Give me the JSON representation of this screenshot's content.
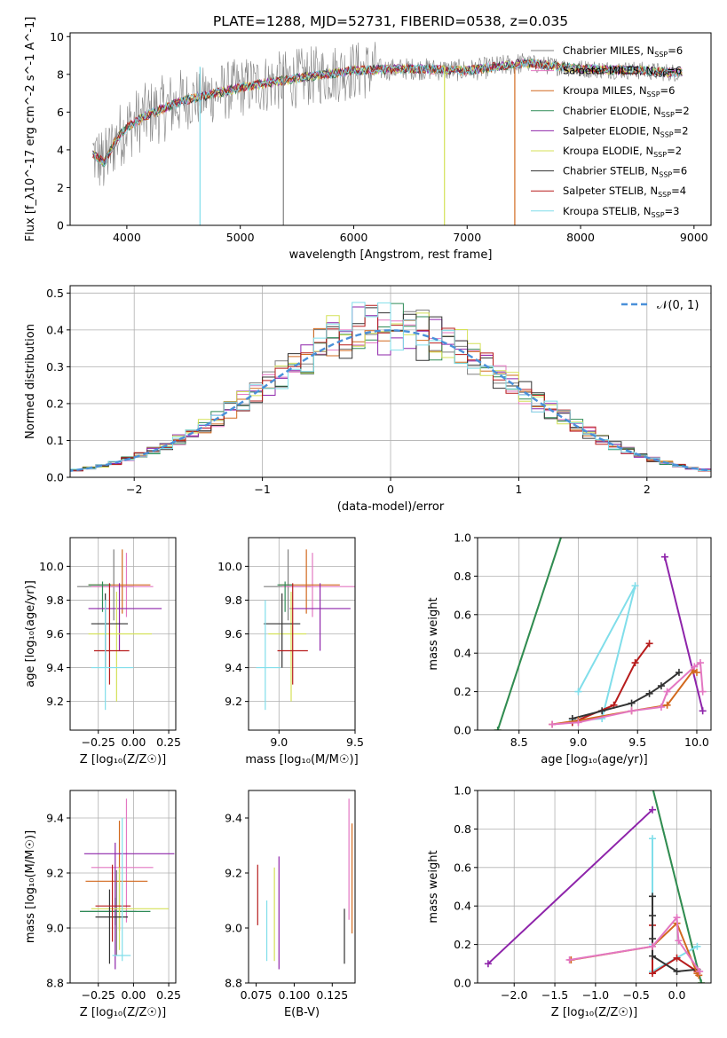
{
  "title": "PLATE=1288, MJD=52731, FIBERID=0538, z=0.035",
  "chart_data": [
    {
      "id": "spectrum",
      "type": "line",
      "xlabel": "wavelength [Angstrom, rest frame]",
      "ylabel": "Flux [f_λ10^-17 erg cm^-2 s^-1 A^-1]",
      "xlim": [
        3500,
        9150
      ],
      "ylim": [
        0,
        10.2
      ],
      "xticks": [
        4000,
        5000,
        6000,
        7000,
        8000,
        9000
      ],
      "yticks": [
        0,
        2,
        4,
        6,
        8,
        10
      ],
      "grid": false,
      "legend_loc": "right",
      "data_color": "#808080",
      "data_range": [
        3700,
        8900
      ],
      "continuum_x": [
        3700,
        3800,
        3900,
        4000,
        4200,
        4500,
        5000,
        5500,
        6000,
        6500,
        7000,
        7500,
        8000,
        8500,
        8800
      ],
      "continuum_y": [
        3.8,
        3.3,
        4.5,
        5.2,
        5.9,
        6.6,
        7.3,
        7.8,
        8.2,
        8.3,
        8.2,
        8.6,
        8.3,
        8.2,
        8.1
      ],
      "series": [
        {
          "name": "Chabrier MILES, N_SSP=6",
          "color": "#7f7f7f"
        },
        {
          "name": "Salpeter MILES, N_SSP=6",
          "color": "#e377c2"
        },
        {
          "name": "Kroupa MILES, N_SSP=6",
          "color": "#d2691e"
        },
        {
          "name": "Chabrier ELODIE, N_SSP=2",
          "color": "#2e8b57"
        },
        {
          "name": "Salpeter ELODIE, N_SSP=2",
          "color": "#8e24aa"
        },
        {
          "name": "Kroupa ELODIE, N_SSP=2",
          "color": "#d4e157"
        },
        {
          "name": "Chabrier STELIB, N_SSP=6",
          "color": "#333333"
        },
        {
          "name": "Salpeter STELIB, N_SSP=4",
          "color": "#b71c1c"
        },
        {
          "name": "Kroupa STELIB, N_SSP=3",
          "color": "#80deea"
        }
      ]
    },
    {
      "id": "residuals",
      "type": "line",
      "xlabel": "(data-model)/error",
      "ylabel": "Normed distribution",
      "xlim": [
        -2.5,
        2.5
      ],
      "ylim": [
        0,
        0.52
      ],
      "xticks": [
        -2,
        -1,
        0,
        1,
        2
      ],
      "yticks": [
        0.0,
        0.1,
        0.2,
        0.3,
        0.4,
        0.5
      ],
      "grid": true,
      "legend": "𝒩(0, 1)",
      "legend_loc": "top-right",
      "gauss_color": "#4a90d9",
      "bin_width": 0.1,
      "hist_colors": [
        "#7f7f7f",
        "#e377c2",
        "#d2691e",
        "#2e8b57",
        "#8e24aa",
        "#d4e157",
        "#333333",
        "#b71c1c",
        "#80deea"
      ]
    },
    {
      "id": "age-vs-Z",
      "type": "scatter",
      "xlabel": "Z [log₁₀(Z/Z☉)]",
      "ylabel": "age  [log₁₀(age/yr)]",
      "xlim": [
        -0.45,
        0.3
      ],
      "ylim": [
        9.03,
        10.17
      ],
      "xticks": [
        -0.25,
        0.0,
        0.25
      ],
      "yticks": [
        9.2,
        9.4,
        9.6,
        9.8,
        10.0
      ],
      "grid": true,
      "points": [
        {
          "x": -0.14,
          "y": 9.88,
          "xerr": [
            0.26,
            0.14
          ],
          "yerr": [
            0.2,
            0.22
          ],
          "color": "#7f7f7f"
        },
        {
          "x": -0.05,
          "y": 9.88,
          "xerr": [
            0.25,
            0.19
          ],
          "yerr": [
            0.18,
            0.2
          ],
          "color": "#e377c2"
        },
        {
          "x": -0.08,
          "y": 9.89,
          "xerr": [
            0.24,
            0.2
          ],
          "yerr": [
            0.17,
            0.21
          ],
          "color": "#d2691e"
        },
        {
          "x": -0.22,
          "y": 9.89,
          "xerr": [
            0.1,
            0.06
          ],
          "yerr": [
            0.16,
            0.02
          ],
          "color": "#2e8b57"
        },
        {
          "x": -0.1,
          "y": 9.75,
          "xerr": [
            0.22,
            0.3
          ],
          "yerr": [
            0.25,
            0.15
          ],
          "color": "#8e24aa"
        },
        {
          "x": -0.12,
          "y": 9.6,
          "xerr": [
            0.2,
            0.25
          ],
          "yerr": [
            0.4,
            0.25
          ],
          "color": "#d4e157"
        },
        {
          "x": -0.2,
          "y": 9.66,
          "xerr": [
            0.1,
            0.16
          ],
          "yerr": [
            0.26,
            0.18
          ],
          "color": "#333333"
        },
        {
          "x": -0.17,
          "y": 9.5,
          "xerr": [
            0.11,
            0.14
          ],
          "yerr": [
            0.2,
            0.4
          ],
          "color": "#b71c1c"
        },
        {
          "x": -0.2,
          "y": 9.4,
          "xerr": [
            0.1,
            0.2
          ],
          "yerr": [
            0.25,
            0.4
          ],
          "color": "#80deea"
        }
      ]
    },
    {
      "id": "age-vs-mass",
      "type": "scatter",
      "xlabel": "mass [log₁₀(M/M☉)]",
      "ylabel": "",
      "xlim": [
        8.8,
        9.5
      ],
      "ylim": [
        9.03,
        10.17
      ],
      "xticks": [
        9.0,
        9.5
      ],
      "yticks": [
        9.2,
        9.4,
        9.6,
        9.8,
        10.0
      ],
      "grid": true,
      "points": [
        {
          "x": 9.06,
          "y": 9.88,
          "xerr": [
            0.16,
            0.15
          ],
          "yerr": [
            0.2,
            0.22
          ],
          "color": "#7f7f7f"
        },
        {
          "x": 9.22,
          "y": 9.88,
          "xerr": [
            0.2,
            0.3
          ],
          "yerr": [
            0.18,
            0.2
          ],
          "color": "#e377c2"
        },
        {
          "x": 9.18,
          "y": 9.89,
          "xerr": [
            0.18,
            0.22
          ],
          "yerr": [
            0.17,
            0.21
          ],
          "color": "#d2691e"
        },
        {
          "x": 9.04,
          "y": 9.89,
          "xerr": [
            0.05,
            0.05
          ],
          "yerr": [
            0.16,
            0.02
          ],
          "color": "#2e8b57"
        },
        {
          "x": 9.27,
          "y": 9.75,
          "xerr": [
            0.2,
            0.2
          ],
          "yerr": [
            0.25,
            0.15
          ],
          "color": "#8e24aa"
        },
        {
          "x": 9.08,
          "y": 9.6,
          "xerr": [
            0.15,
            0.1
          ],
          "yerr": [
            0.4,
            0.25
          ],
          "color": "#d4e157"
        },
        {
          "x": 9.02,
          "y": 9.66,
          "xerr": [
            0.12,
            0.12
          ],
          "yerr": [
            0.26,
            0.18
          ],
          "color": "#333333"
        },
        {
          "x": 9.09,
          "y": 9.5,
          "xerr": [
            0.1,
            0.1
          ],
          "yerr": [
            0.2,
            0.4
          ],
          "color": "#b71c1c"
        },
        {
          "x": 8.91,
          "y": 9.4,
          "xerr": [
            0.06,
            0.1
          ],
          "yerr": [
            0.25,
            0.4
          ],
          "color": "#80deea"
        }
      ]
    },
    {
      "id": "massweight-vs-age",
      "type": "line",
      "xlabel": "age  [log₁₀(age/yr)]",
      "ylabel": "mass weight",
      "xlim": [
        8.15,
        10.12
      ],
      "ylim": [
        0,
        1.0
      ],
      "xticks": [
        8.5,
        9.0,
        9.5,
        10.0
      ],
      "yticks": [
        0.0,
        0.2,
        0.4,
        0.6,
        0.8,
        1.0
      ],
      "grid": true,
      "series": [
        {
          "color": "#d4e157",
          "x": [
            8.32,
            8.88
          ],
          "y": [
            0.0,
            1.05
          ]
        },
        {
          "color": "#2e8b57",
          "x": [
            8.32,
            8.88
          ],
          "y": [
            0.0,
            1.05
          ]
        },
        {
          "color": "#8e24aa",
          "x": [
            9.73,
            10.05
          ],
          "y": [
            0.9,
            0.1
          ]
        },
        {
          "color": "#80deea",
          "x": [
            8.95,
            9.2,
            9.48,
            9.0
          ],
          "y": [
            0.05,
            0.06,
            0.75,
            0.2
          ]
        },
        {
          "color": "#b71c1c",
          "x": [
            8.95,
            9.3,
            9.48,
            9.6
          ],
          "y": [
            0.04,
            0.13,
            0.35,
            0.45
          ]
        },
        {
          "color": "#333333",
          "x": [
            8.95,
            9.2,
            9.45,
            9.6,
            9.7,
            9.85
          ],
          "y": [
            0.06,
            0.1,
            0.14,
            0.19,
            0.23,
            0.3
          ]
        },
        {
          "color": "#d2691e",
          "x": [
            8.78,
            9.0,
            9.45,
            9.75,
            9.97,
            10.0
          ],
          "y": [
            0.03,
            0.05,
            0.1,
            0.13,
            0.31,
            0.3
          ]
        },
        {
          "color": "#e377c2",
          "x": [
            8.78,
            9.0,
            9.45,
            9.7,
            9.75,
            9.98,
            10.03,
            10.05
          ],
          "y": [
            0.03,
            0.04,
            0.1,
            0.12,
            0.2,
            0.33,
            0.35,
            0.2
          ]
        }
      ]
    },
    {
      "id": "mass-vs-Z",
      "type": "scatter",
      "xlabel": "Z [log₁₀(Z/Z☉)]",
      "ylabel": "mass [log₁₀(M/M☉)]",
      "xlim": [
        -0.45,
        0.3
      ],
      "ylim": [
        8.8,
        9.5
      ],
      "xticks": [
        -0.25,
        0.0,
        0.25
      ],
      "yticks": [
        8.8,
        9.0,
        9.2,
        9.4
      ],
      "grid": true,
      "points": [
        {
          "x": -0.12,
          "y": 9.06,
          "xerr": [
            0.26,
            0.14
          ],
          "yerr": [
            0.16,
            0.15
          ],
          "color": "#7f7f7f"
        },
        {
          "x": -0.05,
          "y": 9.22,
          "xerr": [
            0.25,
            0.19
          ],
          "yerr": [
            0.2,
            0.25
          ],
          "color": "#e377c2"
        },
        {
          "x": -0.1,
          "y": 9.17,
          "xerr": [
            0.24,
            0.2
          ],
          "yerr": [
            0.18,
            0.22
          ],
          "color": "#d2691e"
        },
        {
          "x": -0.13,
          "y": 9.06,
          "xerr": [
            0.25,
            0.25
          ],
          "yerr": [
            0.05,
            0.05
          ],
          "color": "#2e8b57"
        },
        {
          "x": -0.13,
          "y": 9.27,
          "xerr": [
            0.22,
            0.42
          ],
          "yerr": [
            0.42,
            0.04
          ],
          "color": "#8e24aa"
        },
        {
          "x": -0.1,
          "y": 9.07,
          "xerr": [
            0.2,
            0.35
          ],
          "yerr": [
            0.15,
            0.15
          ],
          "color": "#d4e157"
        },
        {
          "x": -0.17,
          "y": 9.04,
          "xerr": [
            0.1,
            0.13
          ],
          "yerr": [
            0.17,
            0.1
          ],
          "color": "#333333"
        },
        {
          "x": -0.15,
          "y": 9.08,
          "xerr": [
            0.12,
            0.13
          ],
          "yerr": [
            0.13,
            0.15
          ],
          "color": "#b71c1c"
        },
        {
          "x": -0.08,
          "y": 8.9,
          "xerr": [
            0.07,
            0.06
          ],
          "yerr": [
            0.02,
            0.5
          ],
          "color": "#80deea"
        }
      ]
    },
    {
      "id": "mass-vs-EBV",
      "type": "scatter",
      "xlabel": "E(B-V)",
      "ylabel": "",
      "xlim": [
        0.07,
        0.14
      ],
      "ylim": [
        8.8,
        9.5
      ],
      "xticks": [
        0.075,
        0.1,
        0.125
      ],
      "yticks": [
        8.8,
        9.0,
        9.2,
        9.4
      ],
      "grid": false,
      "points": [
        {
          "x": 0.076,
          "y": 9.12,
          "yerr": [
            0.11,
            0.11
          ],
          "color": "#b71c1c"
        },
        {
          "x": 0.082,
          "y": 8.99,
          "yerr": [
            0.11,
            0.11
          ],
          "color": "#80deea"
        },
        {
          "x": 0.087,
          "y": 9.06,
          "yerr": [
            0.18,
            0.16
          ],
          "color": "#d4e157"
        },
        {
          "x": 0.09,
          "y": 9.1,
          "yerr": [
            0.25,
            0.16
          ],
          "color": "#8e24aa"
        },
        {
          "x": 0.133,
          "y": 8.97,
          "yerr": [
            0.1,
            0.1
          ],
          "color": "#333333"
        },
        {
          "x": 0.136,
          "y": 9.25,
          "yerr": [
            0.22,
            0.22
          ],
          "color": "#e377c2"
        },
        {
          "x": 0.138,
          "y": 9.18,
          "yerr": [
            0.2,
            0.2
          ],
          "color": "#d2691e"
        }
      ]
    },
    {
      "id": "massweight-vs-Z",
      "type": "line",
      "xlabel": "Z [log₁₀(Z/Z☉)]",
      "ylabel": "mass weight",
      "xlim": [
        -2.45,
        0.42
      ],
      "ylim": [
        0,
        1.0
      ],
      "xticks": [
        -2.0,
        -1.5,
        -1.0,
        -0.5,
        0.0
      ],
      "yticks": [
        0.0,
        0.2,
        0.4,
        0.6,
        0.8,
        1.0
      ],
      "grid": true,
      "series": [
        {
          "color": "#d4e157",
          "x": [
            -0.32,
            0.3
          ],
          "y": [
            1.05,
            0.0
          ]
        },
        {
          "color": "#2e8b57",
          "x": [
            -0.32,
            0.3
          ],
          "y": [
            1.05,
            0.0
          ]
        },
        {
          "color": "#8e24aa",
          "x": [
            -2.32,
            -0.3
          ],
          "y": [
            0.1,
            0.9
          ]
        },
        {
          "color": "#80deea",
          "x": [
            -0.3,
            -0.3,
            -0.3,
            0.25
          ],
          "y": [
            0.75,
            0.2,
            0.06,
            0.19
          ]
        },
        {
          "color": "#b71c1c",
          "x": [
            -0.3,
            -0.3,
            0.0,
            0.25
          ],
          "y": [
            0.3,
            0.05,
            0.13,
            0.06
          ]
        },
        {
          "color": "#333333",
          "x": [
            -0.3,
            -0.3,
            -0.3,
            -0.3,
            0.0,
            0.25
          ],
          "y": [
            0.45,
            0.35,
            0.23,
            0.14,
            0.06,
            0.07
          ]
        },
        {
          "color": "#d2691e",
          "x": [
            -1.3,
            -0.3,
            0.0,
            0.25,
            0.27
          ],
          "y": [
            0.12,
            0.19,
            0.31,
            0.05,
            0.04
          ]
        },
        {
          "color": "#e377c2",
          "x": [
            -1.32,
            -0.3,
            0.0,
            0.02,
            0.28
          ],
          "y": [
            0.12,
            0.19,
            0.34,
            0.22,
            0.06
          ]
        }
      ]
    }
  ]
}
